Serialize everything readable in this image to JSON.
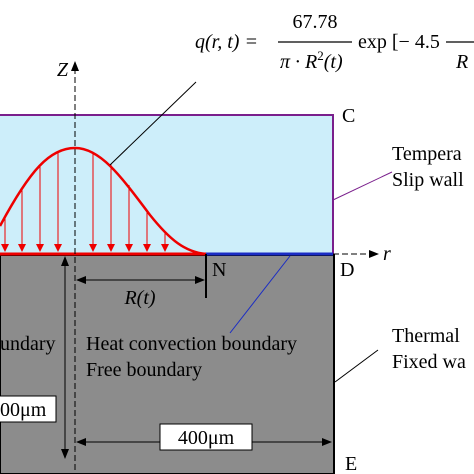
{
  "equation": {
    "lhs": "q(r, t) =",
    "numerator": "67.78",
    "denominator": "π · R",
    "denominator_power": "2",
    "denominator_tail": "(t)",
    "exp": "exp [− 4.5",
    "cut_denominator": "R"
  },
  "axes": {
    "z": "Z",
    "r": "r"
  },
  "points": {
    "c": "C",
    "d": "D",
    "e": "E",
    "n": "N"
  },
  "dimensions": {
    "radius": "R(t)",
    "width": "400μm",
    "depth": "00μm"
  },
  "labels": {
    "top_right_1": "Tempera",
    "top_right_2": "Slip wall",
    "left_boundary": "undary",
    "heat": "Heat convection boundary",
    "free": "Free boundary",
    "bottom_right_1": "Thermal",
    "bottom_right_2": "Fixed wa"
  }
}
